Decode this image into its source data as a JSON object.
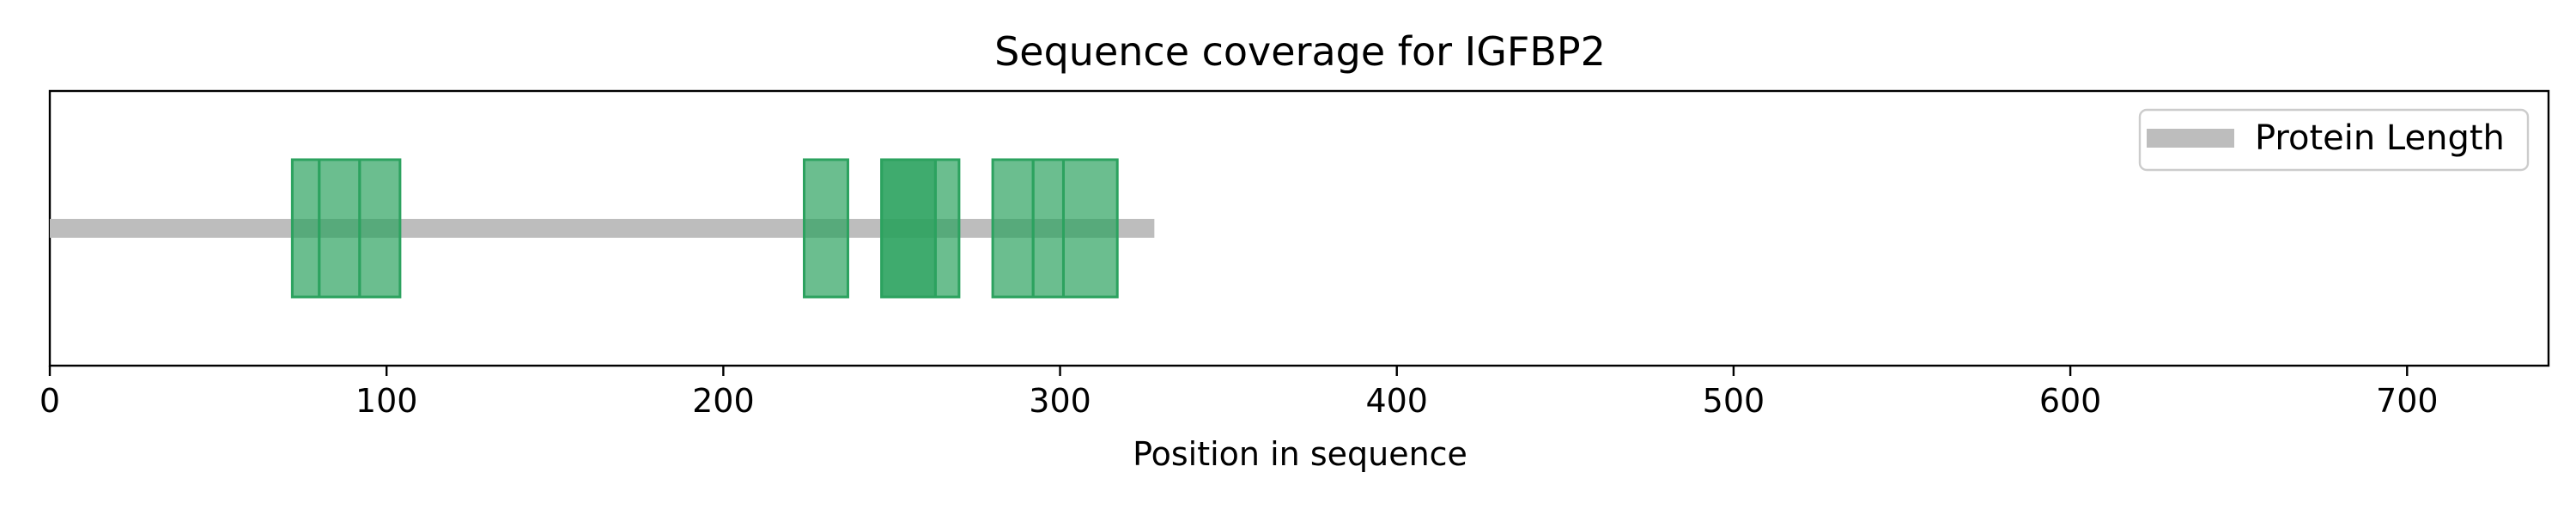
{
  "chart_data": {
    "type": "bar",
    "title": "Sequence coverage for IGFBP2",
    "xlabel": "Position in sequence",
    "ylabel": "",
    "xlim": [
      0,
      742
    ],
    "xticks": [
      0,
      100,
      200,
      300,
      400,
      500,
      600,
      700
    ],
    "grid": false,
    "legend_position": "top-right",
    "series": [
      {
        "name": "Protein Length",
        "start": 0,
        "end": 328,
        "color": "#bdbdbd"
      }
    ],
    "peptides": [
      {
        "start": 72,
        "end": 80
      },
      {
        "start": 80,
        "end": 92
      },
      {
        "start": 92,
        "end": 104
      },
      {
        "start": 224,
        "end": 237
      },
      {
        "start": 247,
        "end": 263
      },
      {
        "start": 247,
        "end": 263
      },
      {
        "start": 263,
        "end": 270
      },
      {
        "start": 280,
        "end": 292
      },
      {
        "start": 292,
        "end": 301
      },
      {
        "start": 301,
        "end": 317
      }
    ],
    "peptide_color": "#2ca25f"
  }
}
